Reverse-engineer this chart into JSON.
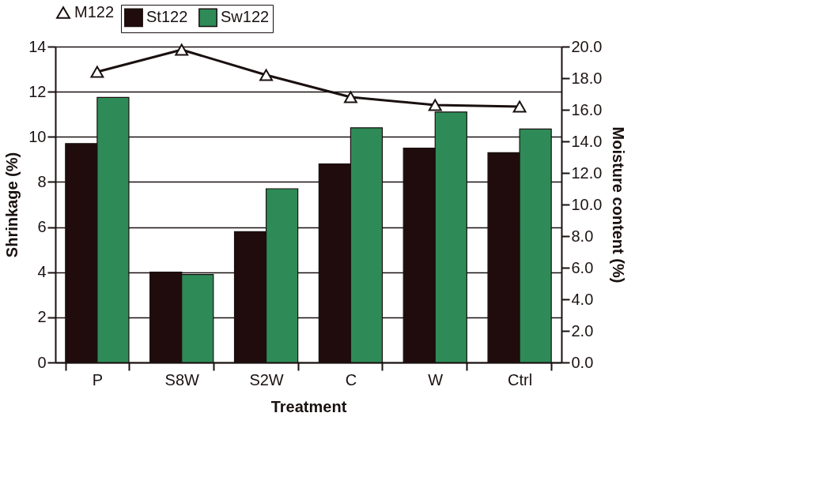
{
  "chart_data": {
    "type": "bar",
    "xlabel": "Treatment",
    "ylabel": "Shrinkage (%)",
    "y2label": "Moisture content (%)",
    "categories": [
      "P",
      "S8W",
      "S2W",
      "C",
      "W",
      "Ctrl"
    ],
    "series": [
      {
        "name": "St122",
        "color": "#200c0c",
        "values": [
          9.7,
          4.0,
          5.8,
          8.8,
          9.5,
          9.3
        ]
      },
      {
        "name": "Sw122",
        "color": "#2e8b57",
        "values": [
          11.75,
          3.9,
          7.7,
          10.4,
          11.1,
          10.35
        ]
      },
      {
        "name": "M122",
        "type": "line",
        "axis": "y2",
        "color": "#1a1010",
        "marker": "triangle",
        "values": [
          18.4,
          19.8,
          18.2,
          16.8,
          16.3,
          16.2
        ]
      }
    ],
    "ylim": [
      0,
      14
    ],
    "yticks": [
      0,
      2,
      4,
      6,
      8,
      10,
      12,
      14
    ],
    "y2lim": [
      0,
      20
    ],
    "y2ticks": [
      {
        "value": 0,
        "label": "0.0"
      },
      {
        "value": 2,
        "label": "2.0"
      },
      {
        "value": 4,
        "label": "4.0"
      },
      {
        "value": 6,
        "label": "6.0"
      },
      {
        "value": 8,
        "label": "8.0"
      },
      {
        "value": 10,
        "label": "10.0"
      },
      {
        "value": 12,
        "label": "12.0"
      },
      {
        "value": 14,
        "label": "14.0"
      },
      {
        "value": 16,
        "label": "16.0"
      },
      {
        "value": 18,
        "label": "18.0"
      },
      {
        "value": 20,
        "label": "20.0"
      }
    ],
    "grid": "y",
    "legend": "top"
  }
}
